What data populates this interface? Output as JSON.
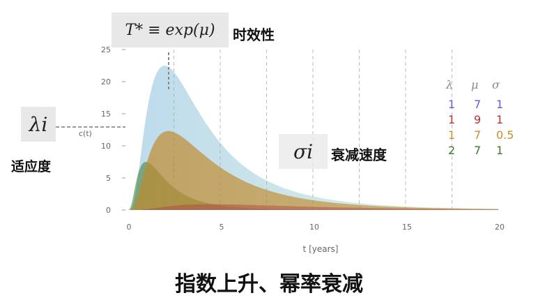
{
  "chart_data": {
    "type": "area",
    "xlabel": "t [years]",
    "ylabel": "c(t)",
    "xlim": [
      0,
      20
    ],
    "ylim": [
      0,
      25
    ],
    "x_ticks": [
      0,
      5,
      10,
      15,
      20
    ],
    "y_ticks": [
      0,
      5,
      10,
      15,
      20,
      25
    ],
    "grid": "vertical dashed",
    "legend_header": [
      "λ",
      "μ",
      "σ"
    ],
    "series": [
      {
        "lambda": "1",
        "mu": "7",
        "sigma": "1",
        "color": "#6baed6",
        "peak_x": 2.0,
        "peak_y": 22.5
      },
      {
        "lambda": "1",
        "mu": "9",
        "sigma": "1",
        "color": "#b04a4a",
        "peak_x": 4.5,
        "peak_y": 0.9
      },
      {
        "lambda": "1",
        "mu": "7",
        "sigma": "0.5",
        "color": "#c0892a",
        "peak_x": 2.2,
        "peak_y": 12.3
      },
      {
        "lambda": "2",
        "mu": "7",
        "sigma": "1",
        "color": "#3a7a2a",
        "peak_x": 1.0,
        "peak_y": 7.5
      }
    ],
    "legend_colors": [
      "#5860e0",
      "#c03030",
      "#c8902a",
      "#3a7a2a"
    ]
  },
  "annotations": {
    "t_star": "T* ≡ exp(μ)",
    "t_star_cn": "时效性",
    "lambda_symbol": "λi",
    "lambda_cn": "适应度",
    "sigma_symbol": "σi",
    "sigma_cn": "衰减速度"
  },
  "caption": "指数上升、幂率衰减"
}
